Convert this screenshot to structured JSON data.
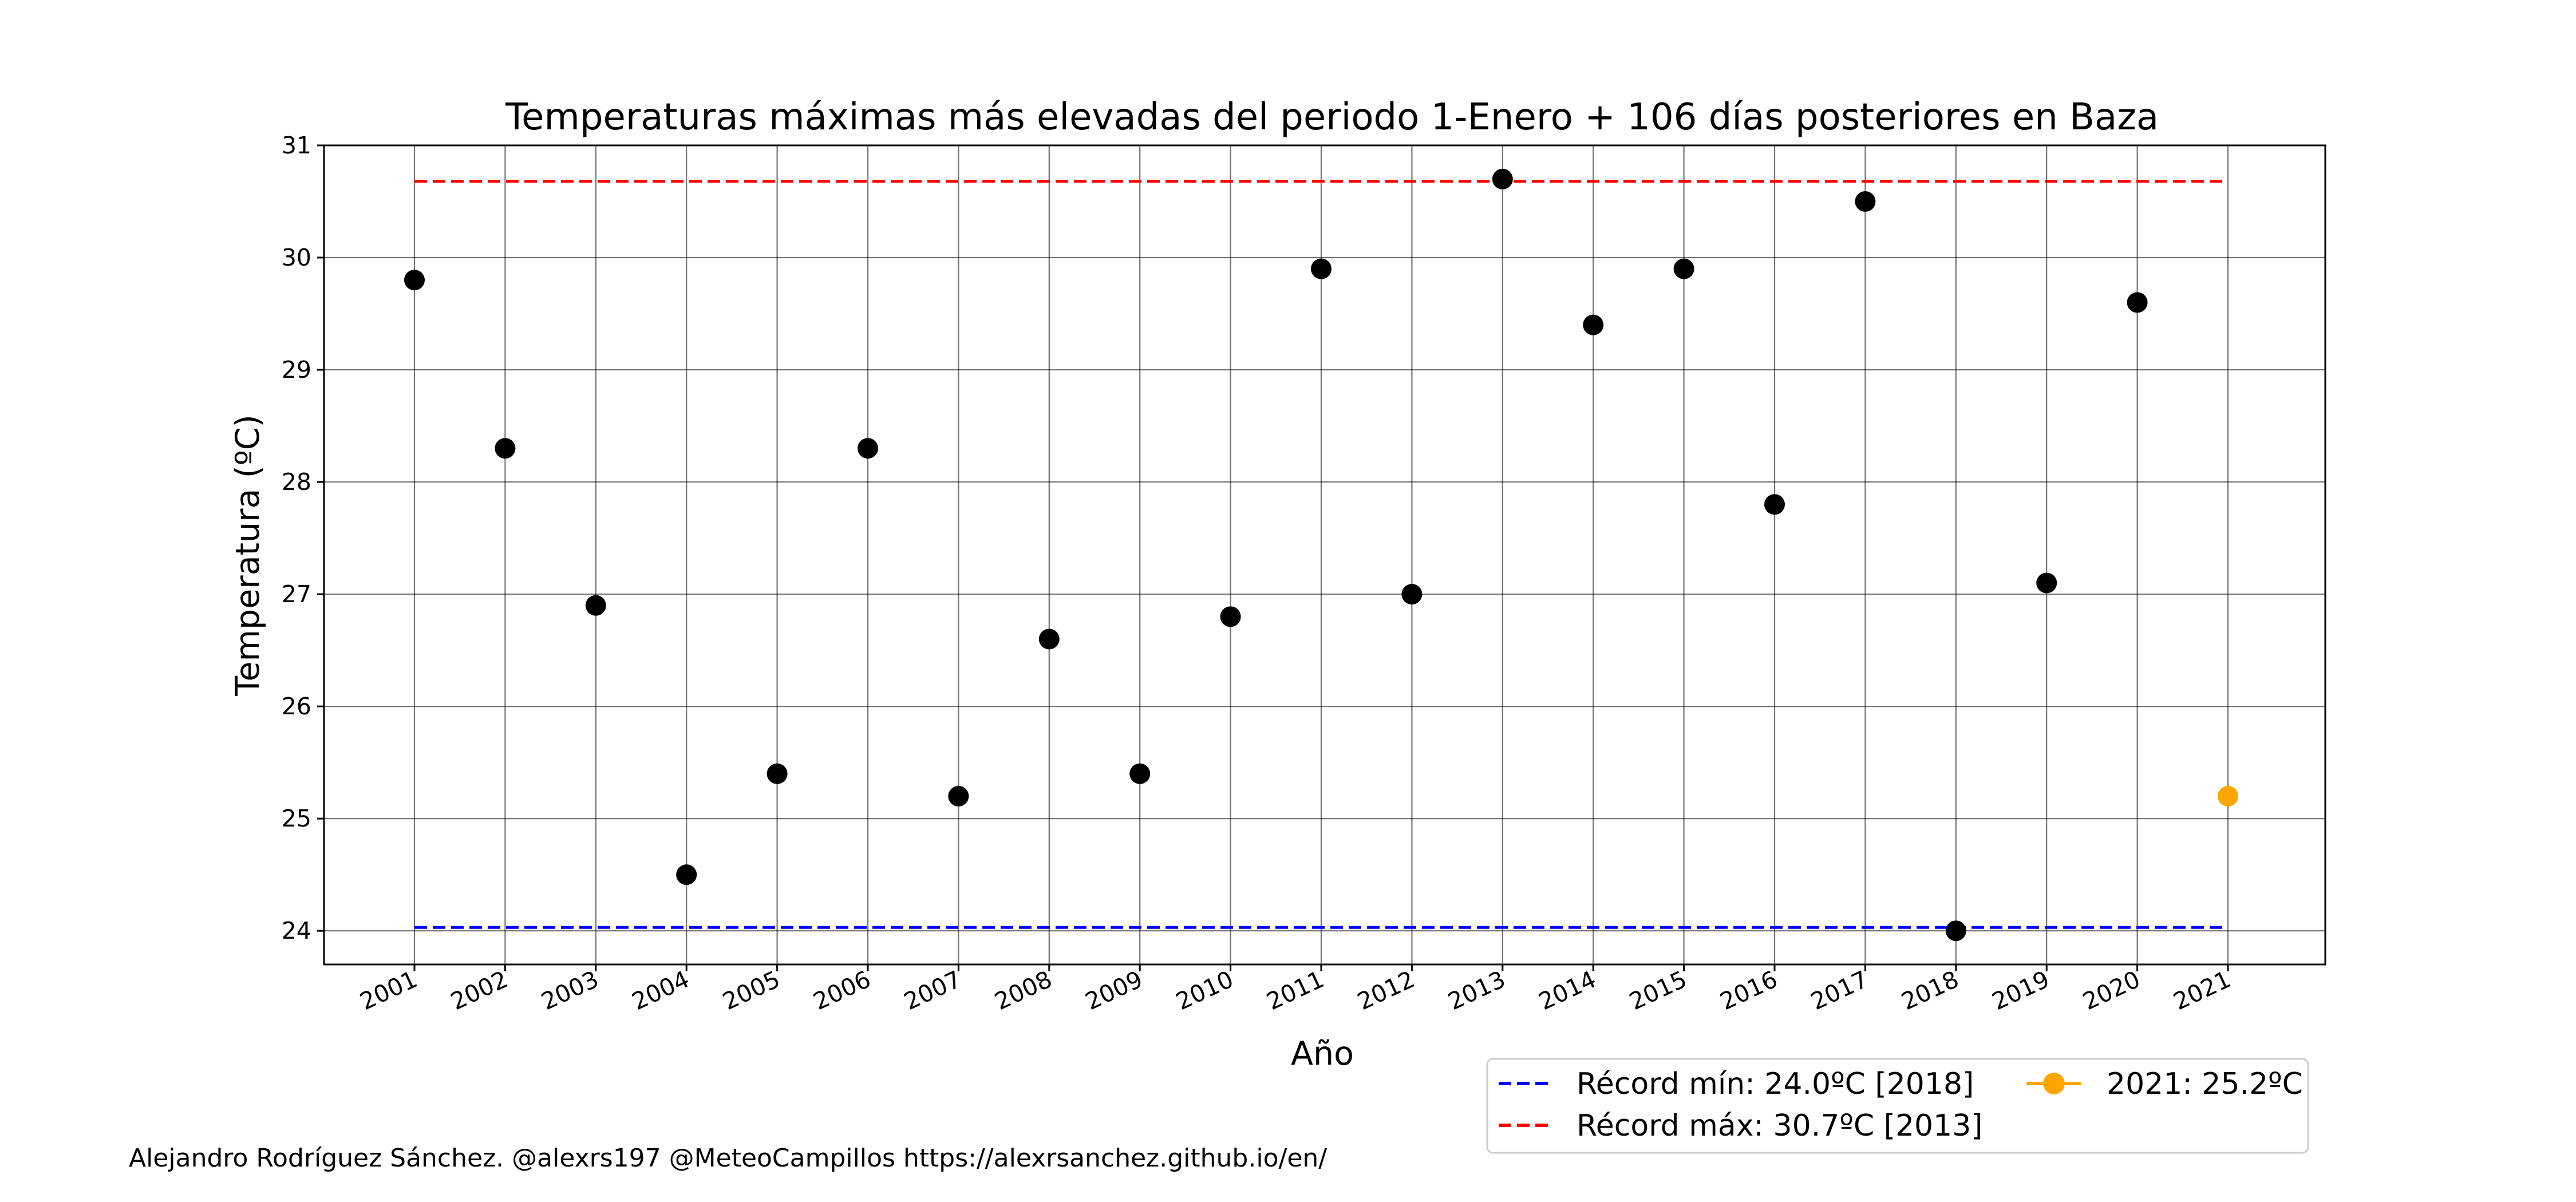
{
  "chart_data": {
    "type": "scatter",
    "title": "Temperaturas máximas más elevadas del periodo 1-Enero + 106 días posteriores en Baza",
    "xlabel": "Año",
    "ylabel": "Temperatura (ºC)",
    "ylim": [
      23.7,
      31.0
    ],
    "yticks": [
      24,
      25,
      26,
      27,
      28,
      29,
      30,
      31
    ],
    "grid": true,
    "x": [
      "2001",
      "2002",
      "2003",
      "2004",
      "2005",
      "2006",
      "2007",
      "2008",
      "2009",
      "2010",
      "2011",
      "2012",
      "2013",
      "2014",
      "2015",
      "2016",
      "2017",
      "2018",
      "2019",
      "2020",
      "2021"
    ],
    "series": [
      {
        "values": [
          29.8,
          28.3,
          26.9,
          24.5,
          25.4,
          28.3,
          25.2,
          26.6,
          25.4,
          26.8,
          29.9,
          27.0,
          30.7,
          29.4,
          29.9,
          27.8,
          30.5,
          24.0,
          27.1,
          29.6,
          null
        ],
        "color": "#000000"
      },
      {
        "name": "2021: 25.2ºC",
        "values": [
          null,
          null,
          null,
          null,
          null,
          null,
          null,
          null,
          null,
          null,
          null,
          null,
          null,
          null,
          null,
          null,
          null,
          null,
          null,
          null,
          25.2
        ],
        "color": "#ffa500"
      }
    ],
    "reference_lines": [
      {
        "name": "Récord mín: 24.0ºC [2018]",
        "value": 24.03,
        "color": "#0000ff",
        "style": "dashed"
      },
      {
        "name": "Récord máx: 30.7ºC [2013]",
        "value": 30.68,
        "color": "#ff0000",
        "style": "dashed"
      }
    ],
    "legend_position": "bottom-right, below plot"
  },
  "credit": "Alejandro Rodríguez Sánchez. @alexrs197 @MeteoCampillos   https://alexrsanchez.github.io/en/"
}
